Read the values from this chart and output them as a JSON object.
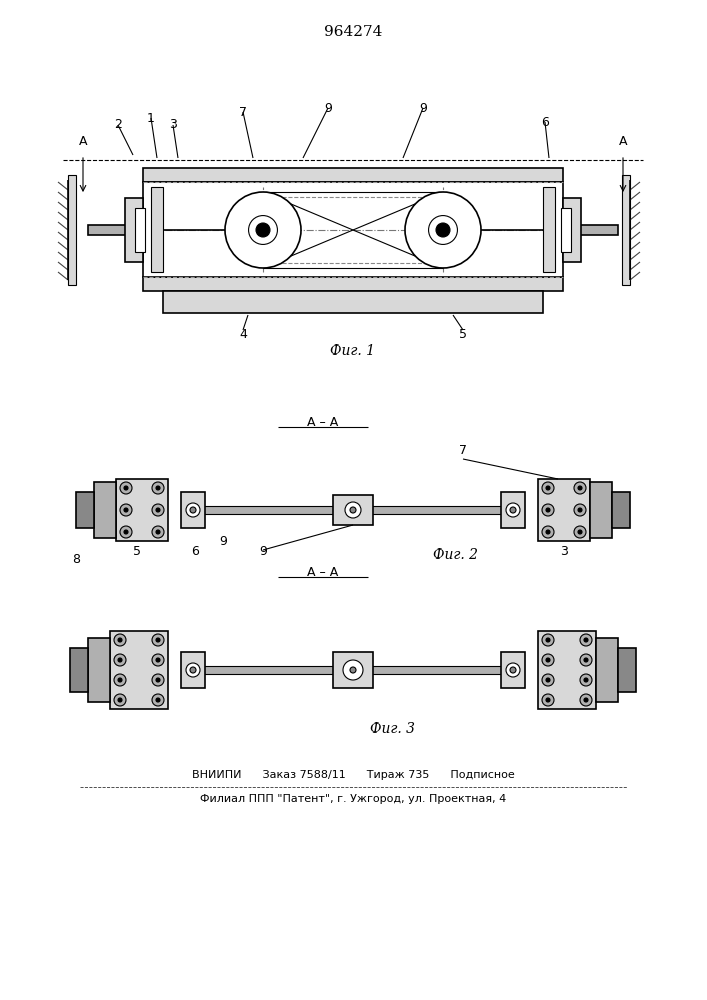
{
  "title": "964274",
  "footer_line1": "ВНИИПИ      Заказ 7588/11      Тираж 735      Подписное",
  "footer_line2": "Филиал ППП \"Патент\", г. Ужгород, ул. Проектная, 4",
  "fig1_caption": "Фиг. 1",
  "fig2_caption": "Фиг. 2",
  "fig3_caption": "Фиг. 3",
  "section_label": "А – А",
  "bg_color": "#ffffff",
  "line_color": "#000000",
  "gray_light": "#d8d8d8",
  "gray_mid": "#b0b0b0",
  "gray_dark": "#888888",
  "hatch_color": "#555555"
}
